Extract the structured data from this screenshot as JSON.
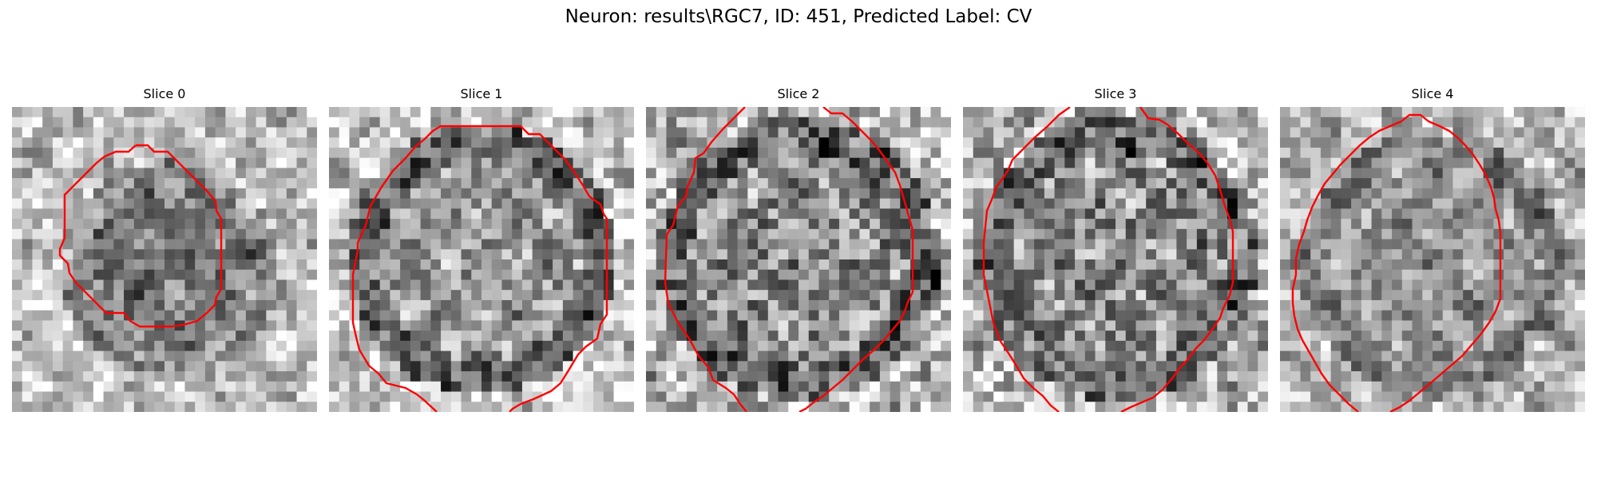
{
  "figure": {
    "title": "Neuron: results\\RGC7, ID: 451, Predicted Label: CV"
  },
  "panels": [
    {
      "title": "Slice 0"
    },
    {
      "title": "Slice 1"
    },
    {
      "title": "Slice 2"
    },
    {
      "title": "Slice 3"
    },
    {
      "title": "Slice 4"
    }
  ],
  "colors": {
    "contour": "#ff0000",
    "background": "#ffffff"
  }
}
